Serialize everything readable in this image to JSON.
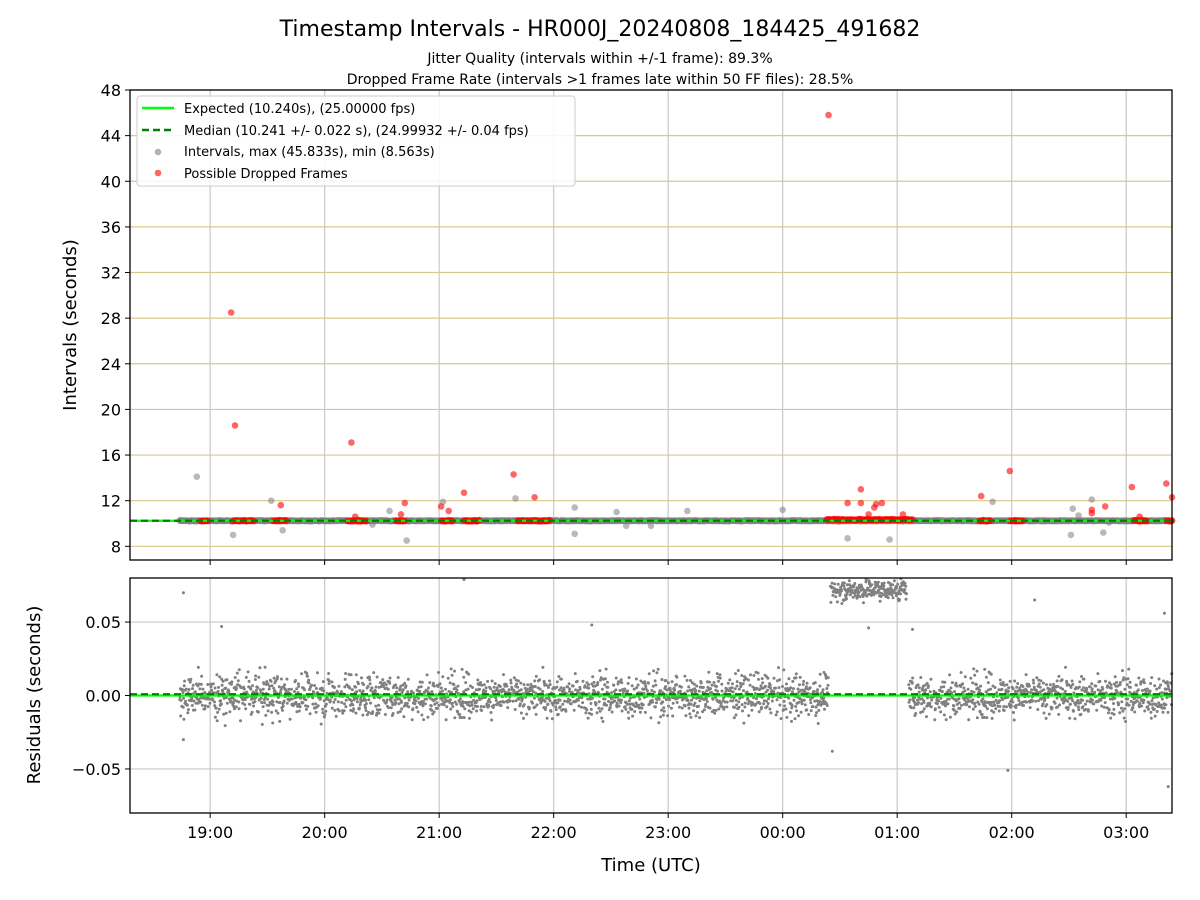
{
  "chart_data": [
    {
      "type": "scatter",
      "title": "Timestamp Intervals - HR000J_20240808_184425_491682",
      "subtitle_1": "Jitter Quality (intervals within +/-1 frame): 89.3%",
      "subtitle_2": "Dropped Frame Rate (intervals >1 frames late within 50 FF files): 28.5%",
      "xlabel": "",
      "ylabel": "Intervals (seconds)",
      "xlim_hours": [
        18.3,
        27.4
      ],
      "ylim": [
        6.8,
        48
      ],
      "yticks": [
        8,
        12,
        16,
        20,
        24,
        28,
        32,
        36,
        40,
        44,
        48
      ],
      "grid": true,
      "legend_position": "top-left",
      "lines": [
        {
          "name": "Expected (10.240s), (25.00000 fps)",
          "y": 10.24,
          "color": "#00ff00",
          "style": "solid"
        },
        {
          "name": "Median (10.241 +/- 0.022 s), (24.99932 +/- 0.04 fps)",
          "y": 10.241,
          "color": "#008000",
          "style": "dashed"
        }
      ],
      "series": [
        {
          "name": "Intervals, max (45.833s), min (8.563s)",
          "color": "#808080",
          "x_start": "18:44",
          "x_end": "03:24",
          "typical_y": 10.24,
          "outliers": [
            {
              "x": "18:53",
              "y": 14.1
            },
            {
              "x": "19:12",
              "y": 9.0
            },
            {
              "x": "19:32",
              "y": 12.0
            },
            {
              "x": "19:38",
              "y": 9.4
            },
            {
              "x": "20:25",
              "y": 9.9
            },
            {
              "x": "20:34",
              "y": 11.1
            },
            {
              "x": "20:43",
              "y": 8.5
            },
            {
              "x": "21:02",
              "y": 11.9
            },
            {
              "x": "21:40",
              "y": 12.2
            },
            {
              "x": "22:11",
              "y": 11.4
            },
            {
              "x": "22:11",
              "y": 9.1
            },
            {
              "x": "22:33",
              "y": 11.0
            },
            {
              "x": "22:38",
              "y": 9.8
            },
            {
              "x": "22:51",
              "y": 9.8
            },
            {
              "x": "23:10",
              "y": 11.1
            },
            {
              "x": "00:00",
              "y": 11.2
            },
            {
              "x": "00:34",
              "y": 8.7
            },
            {
              "x": "00:56",
              "y": 8.6
            },
            {
              "x": "01:50",
              "y": 11.9
            },
            {
              "x": "02:31",
              "y": 9.0
            },
            {
              "x": "02:32",
              "y": 11.3
            },
            {
              "x": "02:35",
              "y": 10.7
            },
            {
              "x": "02:42",
              "y": 12.1
            },
            {
              "x": "02:48",
              "y": 9.2
            },
            {
              "x": "02:51",
              "y": 10.1
            }
          ]
        },
        {
          "name": "Possible Dropped Frames",
          "color": "#ff0000",
          "clusters": [
            {
              "x_start": "18:55",
              "x_end": "18:59",
              "y": 10.24
            },
            {
              "x_start": "19:12",
              "x_end": "19:23",
              "y": 10.24
            },
            {
              "x_start": "19:33",
              "x_end": "19:40",
              "y": 10.24
            },
            {
              "x_start": "20:12",
              "x_end": "20:22",
              "y": 10.24
            },
            {
              "x_start": "20:37",
              "x_end": "20:42",
              "y": 10.24
            },
            {
              "x_start": "21:01",
              "x_end": "21:07",
              "y": 10.24
            },
            {
              "x_start": "21:13",
              "x_end": "21:21",
              "y": 10.24
            },
            {
              "x_start": "21:41",
              "x_end": "21:58",
              "y": 10.24
            },
            {
              "x_start": "00:23",
              "x_end": "01:08",
              "y": 10.34
            },
            {
              "x_start": "01:43",
              "x_end": "01:49",
              "y": 10.24
            },
            {
              "x_start": "01:59",
              "x_end": "02:06",
              "y": 10.24
            },
            {
              "x_start": "03:04",
              "x_end": "03:11",
              "y": 10.24
            },
            {
              "x_start": "03:21",
              "x_end": "03:24",
              "y": 10.24
            }
          ],
          "outliers": [
            {
              "x": "19:11",
              "y": 28.5
            },
            {
              "x": "19:13",
              "y": 18.6
            },
            {
              "x": "19:37",
              "y": 11.6
            },
            {
              "x": "20:14",
              "y": 17.1
            },
            {
              "x": "20:16",
              "y": 10.6
            },
            {
              "x": "20:40",
              "y": 10.8
            },
            {
              "x": "20:42",
              "y": 11.8
            },
            {
              "x": "21:01",
              "y": 11.5
            },
            {
              "x": "21:05",
              "y": 11.1
            },
            {
              "x": "21:13",
              "y": 12.7
            },
            {
              "x": "21:39",
              "y": 14.3
            },
            {
              "x": "21:50",
              "y": 12.3
            },
            {
              "x": "00:24",
              "y": 45.8
            },
            {
              "x": "00:34",
              "y": 11.8
            },
            {
              "x": "00:41",
              "y": 13.0
            },
            {
              "x": "00:41",
              "y": 11.8
            },
            {
              "x": "00:45",
              "y": 10.8
            },
            {
              "x": "00:48",
              "y": 11.4
            },
            {
              "x": "00:49",
              "y": 11.7
            },
            {
              "x": "00:52",
              "y": 11.8
            },
            {
              "x": "01:03",
              "y": 10.8
            },
            {
              "x": "01:44",
              "y": 12.4
            },
            {
              "x": "01:59",
              "y": 14.6
            },
            {
              "x": "02:02",
              "y": 10.3
            },
            {
              "x": "02:42",
              "y": 10.9
            },
            {
              "x": "02:42",
              "y": 11.2
            },
            {
              "x": "02:49",
              "y": 11.5
            },
            {
              "x": "03:03",
              "y": 13.2
            },
            {
              "x": "03:07",
              "y": 10.6
            },
            {
              "x": "03:21",
              "y": 13.5
            },
            {
              "x": "03:24",
              "y": 12.3
            }
          ]
        }
      ]
    },
    {
      "type": "scatter",
      "xlabel": "Time (UTC)",
      "ylabel": "Residuals (seconds)",
      "xlim_hours": [
        18.3,
        27.4
      ],
      "ylim": [
        -0.08,
        0.08
      ],
      "yticks": [
        -0.05,
        0.0,
        0.05
      ],
      "ytick_labels": [
        "−0.05",
        "0.00",
        "0.05"
      ],
      "xticks": [
        "19:00",
        "20:00",
        "21:00",
        "22:00",
        "23:00",
        "00:00",
        "01:00",
        "02:00",
        "03:00"
      ],
      "grid": true,
      "lines": [
        {
          "y": 0.0,
          "color": "#00ff00",
          "style": "solid"
        },
        {
          "y": 0.0009,
          "color": "#008000",
          "style": "dashed"
        }
      ],
      "series": [
        {
          "name": "residuals",
          "color": "#808080",
          "segments": [
            {
              "x_start": "18:44",
              "x_end": "00:24",
              "center": 0.0,
              "spread": 0.012
            },
            {
              "x_start": "00:25",
              "x_end": "01:05",
              "center": 0.072,
              "spread": 0.006
            },
            {
              "x_start": "01:06",
              "x_end": "03:24",
              "center": 0.0,
              "spread": 0.012
            }
          ],
          "outliers": [
            {
              "x": "18:46",
              "y": 0.07
            },
            {
              "x": "18:46",
              "y": -0.03
            },
            {
              "x": "19:06",
              "y": 0.047
            },
            {
              "x": "21:13",
              "y": 0.079
            },
            {
              "x": "22:20",
              "y": 0.048
            },
            {
              "x": "00:26",
              "y": -0.038
            },
            {
              "x": "00:45",
              "y": 0.046
            },
            {
              "x": "01:08",
              "y": 0.045
            },
            {
              "x": "01:58",
              "y": -0.051
            },
            {
              "x": "02:12",
              "y": 0.065
            },
            {
              "x": "03:20",
              "y": 0.056
            },
            {
              "x": "03:22",
              "y": -0.062
            }
          ]
        }
      ]
    }
  ]
}
